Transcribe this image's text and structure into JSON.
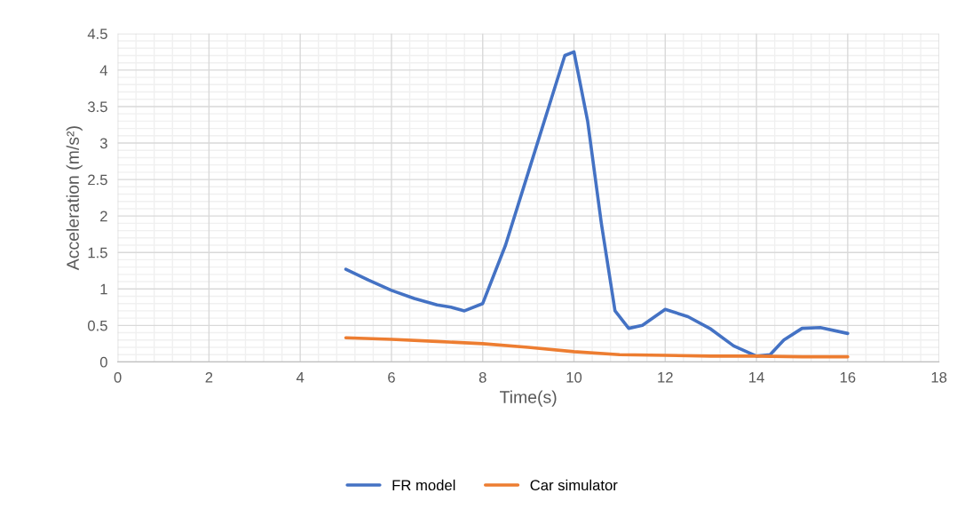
{
  "chart_data": {
    "type": "line",
    "xlabel": "Time(s)",
    "ylabel": "Acceleration (m/s²)",
    "x": [
      5,
      6,
      7,
      8,
      9,
      10,
      11,
      12,
      13,
      14,
      15,
      16
    ],
    "series": [
      {
        "name": "FR model",
        "color": "#4472c4",
        "x": [
          5,
          5.5,
          6,
          6.5,
          7,
          7.3,
          7.6,
          8,
          8.5,
          9,
          9.5,
          9.8,
          10,
          10.3,
          10.6,
          10.9,
          11.2,
          11.5,
          12,
          12.5,
          13,
          13.5,
          14,
          14.3,
          14.6,
          15,
          15.4,
          16
        ],
        "values": [
          1.27,
          1.12,
          0.98,
          0.87,
          0.78,
          0.75,
          0.7,
          0.8,
          1.6,
          2.6,
          3.6,
          4.2,
          4.25,
          3.3,
          1.9,
          0.7,
          0.46,
          0.5,
          0.72,
          0.62,
          0.45,
          0.22,
          0.08,
          0.1,
          0.3,
          0.46,
          0.47,
          0.39
        ]
      },
      {
        "name": "Car simulator",
        "color": "#ed7d31",
        "values": [
          0.33,
          0.31,
          0.28,
          0.25,
          0.2,
          0.14,
          0.1,
          0.09,
          0.08,
          0.08,
          0.07,
          0.07
        ]
      }
    ],
    "xlim": [
      0,
      18
    ],
    "xticks": [
      0,
      2,
      4,
      6,
      8,
      10,
      12,
      14,
      16,
      18
    ],
    "ylim": [
      0,
      4.5
    ],
    "yticks": [
      0,
      0.5,
      1,
      1.5,
      2,
      2.5,
      3,
      3.5,
      4,
      4.5
    ],
    "grid": true,
    "legend": "bottom",
    "marker": "none",
    "line_style": "solid"
  }
}
